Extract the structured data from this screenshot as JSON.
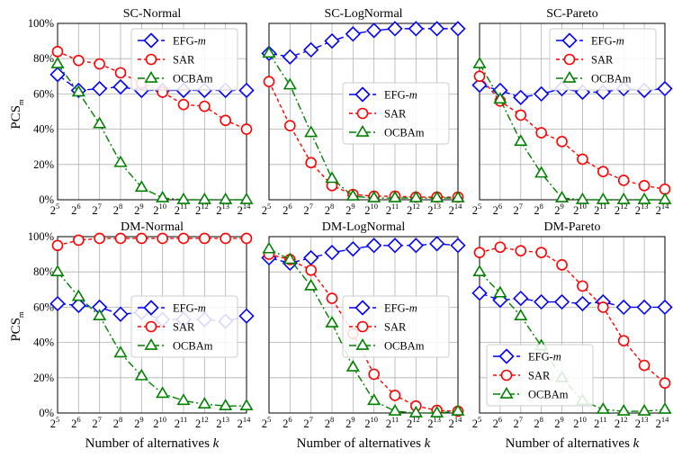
{
  "figure": {
    "ylabel_main": "PCS",
    "ylabel_sub": "m",
    "xlabel": "Number of alternatives",
    "xlabel_var": "k"
  },
  "colors": {
    "EFG-m": "#0000ff",
    "SAR": "#ff0000",
    "OCBAm": "#008000",
    "grid": "#b0b0b0"
  },
  "chart_data": [
    {
      "id": "sc-normal",
      "type": "line",
      "title": "SC-Normal",
      "x_exponents": [
        5,
        6,
        7,
        8,
        9,
        10,
        11,
        12,
        13,
        14
      ],
      "ylim": [
        0,
        100
      ],
      "yticks": [
        "0%",
        "20%",
        "40%",
        "60%",
        "80%",
        "100%"
      ],
      "show_yticks": true,
      "show_xlabel": false,
      "legend_position": "top-right",
      "series": [
        {
          "name": "EFG-m",
          "values": [
            71,
            62,
            63,
            64,
            62,
            62,
            62,
            62,
            62,
            62
          ]
        },
        {
          "name": "SAR",
          "values": [
            84,
            79,
            77,
            72,
            66,
            61,
            54,
            53,
            45,
            40
          ]
        },
        {
          "name": "OCBAm",
          "values": [
            77,
            61,
            43,
            21,
            7,
            1,
            0,
            0,
            0,
            0
          ]
        }
      ]
    },
    {
      "id": "sc-lognormal",
      "type": "line",
      "title": "SC-LogNormal",
      "x_exponents": [
        5,
        6,
        7,
        8,
        9,
        10,
        11,
        12,
        13,
        14
      ],
      "ylim": [
        0,
        100
      ],
      "yticks": [
        "0%",
        "20%",
        "40%",
        "60%",
        "80%",
        "100%"
      ],
      "show_yticks": false,
      "show_xlabel": false,
      "legend_position": "center-right",
      "series": [
        {
          "name": "EFG-m",
          "values": [
            83,
            81,
            85,
            90,
            94,
            96,
            97,
            97,
            97,
            97
          ]
        },
        {
          "name": "SAR",
          "values": [
            67,
            42,
            21,
            8,
            3,
            2,
            2,
            1.5,
            1.5,
            1.5
          ]
        },
        {
          "name": "OCBAm",
          "values": [
            83,
            65,
            38,
            12,
            2,
            1,
            1,
            1,
            1,
            1
          ]
        }
      ]
    },
    {
      "id": "sc-pareto",
      "type": "line",
      "title": "SC-Pareto",
      "x_exponents": [
        5,
        6,
        7,
        8,
        9,
        10,
        11,
        12,
        13,
        14
      ],
      "ylim": [
        0,
        100
      ],
      "yticks": [
        "0%",
        "20%",
        "40%",
        "60%",
        "80%",
        "100%"
      ],
      "show_yticks": false,
      "show_xlabel": false,
      "legend_position": "top-right",
      "series": [
        {
          "name": "EFG-m",
          "values": [
            65,
            62,
            58,
            60,
            63,
            61,
            61,
            63,
            62,
            63
          ]
        },
        {
          "name": "SAR",
          "values": [
            70,
            56,
            48,
            38,
            33,
            23,
            16,
            11,
            8,
            6
          ]
        },
        {
          "name": "OCBAm",
          "values": [
            77,
            57,
            33,
            15,
            1,
            0,
            0,
            0,
            0,
            0
          ]
        }
      ]
    },
    {
      "id": "dm-normal",
      "type": "line",
      "title": "DM-Normal",
      "x_exponents": [
        5,
        6,
        7,
        8,
        9,
        10,
        11,
        12,
        13,
        14
      ],
      "ylim": [
        0,
        100
      ],
      "yticks": [
        "0%",
        "20%",
        "40%",
        "60%",
        "80%",
        "100%"
      ],
      "show_yticks": true,
      "show_xlabel": true,
      "legend_position": "center-right",
      "series": [
        {
          "name": "EFG-m",
          "values": [
            62,
            61,
            60,
            56,
            57,
            53,
            53,
            53,
            52,
            55
          ]
        },
        {
          "name": "SAR",
          "values": [
            95,
            98,
            99,
            99,
            99,
            99,
            99,
            99,
            99,
            99
          ]
        },
        {
          "name": "OCBAm",
          "values": [
            80,
            66,
            55,
            34,
            21,
            11,
            7,
            5,
            4,
            4
          ]
        }
      ]
    },
    {
      "id": "dm-lognormal",
      "type": "line",
      "title": "DM-LogNormal",
      "x_exponents": [
        5,
        6,
        7,
        8,
        9,
        10,
        11,
        12,
        13,
        14
      ],
      "ylim": [
        0,
        100
      ],
      "yticks": [
        "0%",
        "20%",
        "40%",
        "60%",
        "80%",
        "100%"
      ],
      "show_yticks": false,
      "show_xlabel": true,
      "legend_position": "center-right",
      "series": [
        {
          "name": "EFG-m",
          "values": [
            88,
            85,
            88,
            91,
            93,
            95,
            95,
            95,
            96,
            95
          ]
        },
        {
          "name": "SAR",
          "values": [
            90,
            87,
            81,
            65,
            45,
            22,
            10,
            4,
            1.5,
            1
          ]
        },
        {
          "name": "OCBAm",
          "values": [
            93,
            87,
            72,
            51,
            26,
            7,
            1,
            0,
            0,
            1
          ]
        }
      ]
    },
    {
      "id": "dm-pareto",
      "type": "line",
      "title": "DM-Pareto",
      "x_exponents": [
        5,
        6,
        7,
        8,
        9,
        10,
        11,
        12,
        13,
        14
      ],
      "ylim": [
        0,
        100
      ],
      "yticks": [
        "0%",
        "20%",
        "40%",
        "60%",
        "80%",
        "100%"
      ],
      "show_yticks": false,
      "show_xlabel": true,
      "legend_position": "bottom-left",
      "series": [
        {
          "name": "EFG-m",
          "values": [
            68,
            64,
            65,
            63,
            63,
            62,
            63,
            60,
            60,
            60
          ]
        },
        {
          "name": "SAR",
          "values": [
            91,
            94,
            92,
            91,
            84,
            72,
            60,
            41,
            27,
            17
          ]
        },
        {
          "name": "OCBAm",
          "values": [
            80,
            68,
            55,
            38,
            20,
            7,
            2,
            1,
            1,
            2
          ]
        }
      ]
    }
  ]
}
